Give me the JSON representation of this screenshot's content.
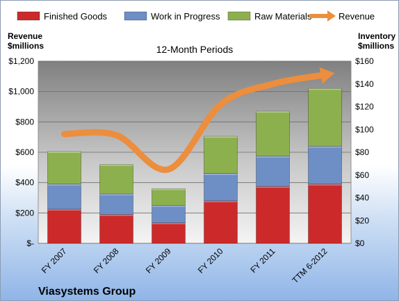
{
  "chart_data": {
    "type": "bar",
    "subtitle": "12-Month Periods",
    "company": "Viasystems Group",
    "categories": [
      "FY 2007",
      "FY 2008",
      "FY 2009",
      "FY 2010",
      "FY 2011",
      "TTM 6-2012"
    ],
    "series": [
      {
        "name": "Finished Goods",
        "axis": "left",
        "values": [
          225,
          190,
          135,
          280,
          375,
          390
        ],
        "color": "#cc2a2a"
      },
      {
        "name": "Work in Progress",
        "axis": "left",
        "values": [
          165,
          135,
          115,
          180,
          200,
          250
        ],
        "color": "#6d8fc6"
      },
      {
        "name": "Raw Materials",
        "axis": "left",
        "values": [
          215,
          195,
          110,
          245,
          295,
          380
        ],
        "color": "#8db04e"
      },
      {
        "name": "Revenue",
        "axis": "right",
        "type": "line",
        "values": [
          96,
          95,
          65,
          122,
          140,
          148
        ],
        "color": "#ec8e3d"
      }
    ],
    "left_axis": {
      "title_line1": "Revenue",
      "title_line2": "$millions",
      "ylim": [
        0,
        1200
      ],
      "ticks": [
        0,
        200,
        400,
        600,
        800,
        1000,
        1200
      ],
      "tick_labels": [
        "$-",
        "$200",
        "$400",
        "$600",
        "$800",
        "$1,000",
        "$1,200"
      ]
    },
    "right_axis": {
      "title_line1": "Inventory",
      "title_line2": "$millions",
      "ylim": [
        0,
        160
      ],
      "ticks": [
        0,
        20,
        40,
        60,
        80,
        100,
        120,
        140,
        160
      ],
      "tick_labels": [
        "$0",
        "$20",
        "$40",
        "$60",
        "$80",
        "$100",
        "$120",
        "$140",
        "$160"
      ]
    },
    "legend_position": "top",
    "grid": true
  }
}
